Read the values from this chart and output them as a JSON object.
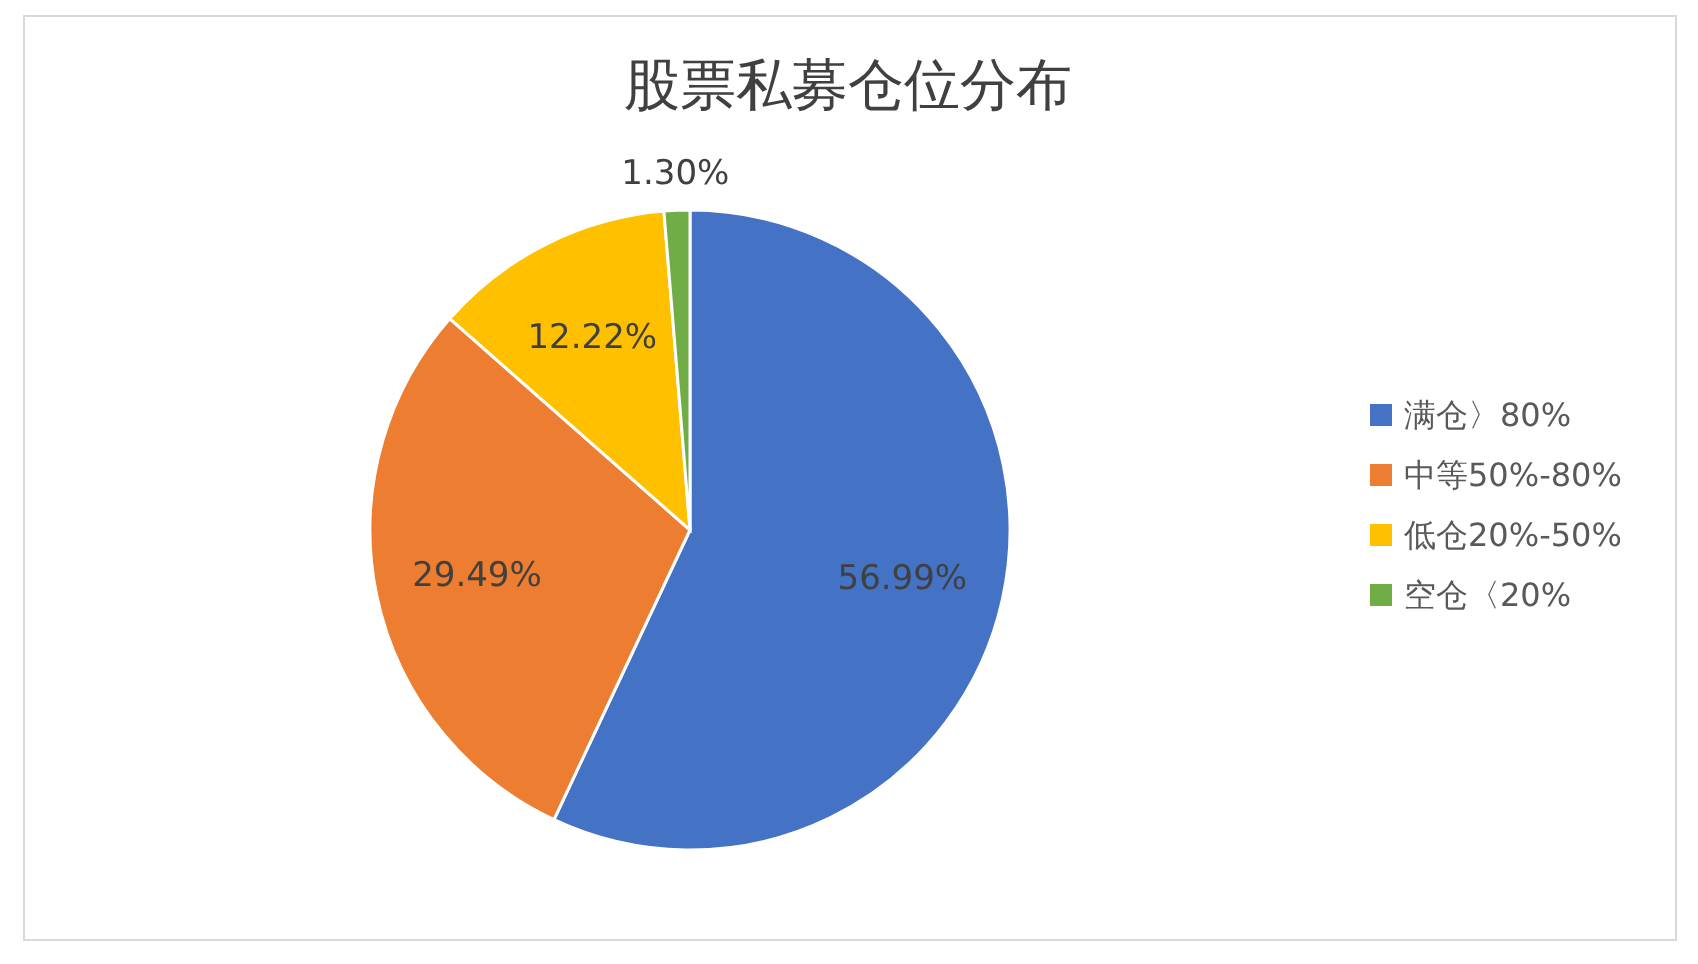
{
  "chart_data": {
    "type": "pie",
    "title": "股票私募仓位分布",
    "categories": [
      "满仓〉80%",
      "中等50%-80%",
      "低仓20%-50%",
      "空仓〈20%"
    ],
    "values": [
      56.99,
      29.49,
      12.22,
      1.3
    ],
    "value_labels": [
      "56.99%",
      "29.49%",
      "12.22%",
      "1.30%"
    ],
    "colors": [
      "#4472c4",
      "#ed7d31",
      "#ffc000",
      "#70ad47"
    ],
    "legend": "right"
  }
}
